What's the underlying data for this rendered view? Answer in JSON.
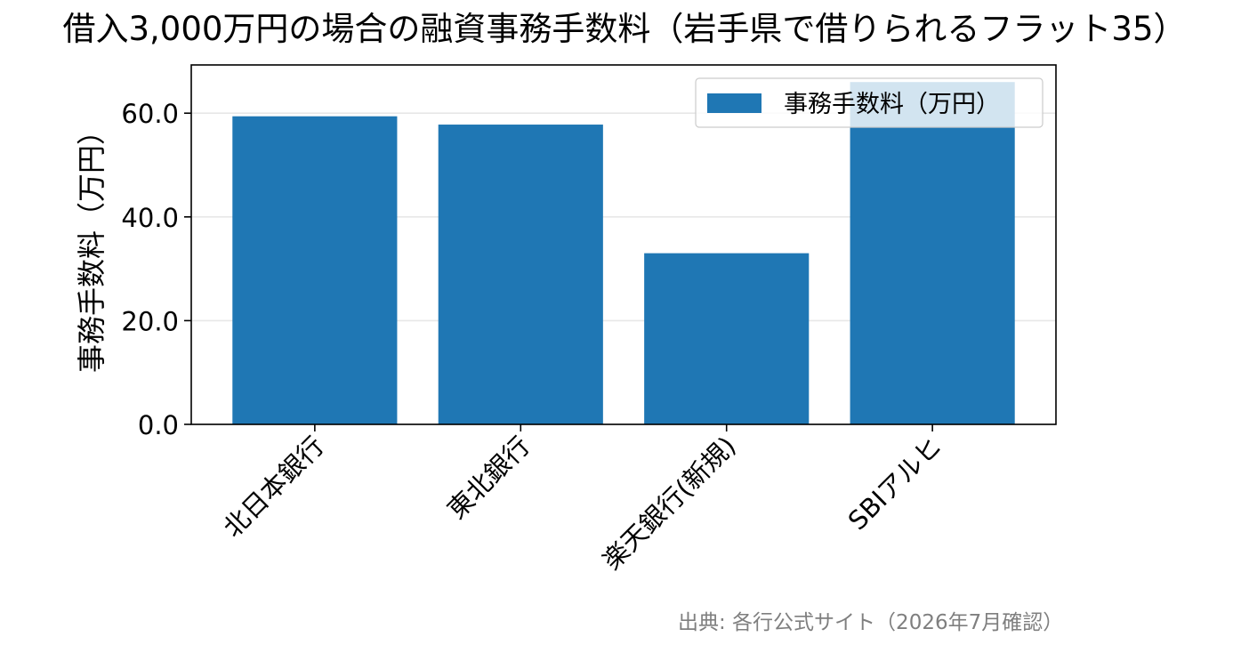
{
  "chart_data": {
    "type": "bar",
    "title": "借入3,000万円の場合の融資事務手数料（岩手県で借りられるフラット35）",
    "xlabel": "",
    "ylabel": "事務手数料（万円）",
    "categories": [
      "北日本銀行",
      "東北銀行",
      "楽天銀行(新規)",
      "SBIアルヒ"
    ],
    "series": [
      {
        "name": "事務手数料（万円）",
        "values": [
          59.4,
          57.8,
          33.0,
          66.0
        ]
      }
    ],
    "ylim": [
      0,
      69.3
    ],
    "yticks": [
      0,
      20,
      40,
      60
    ],
    "ytick_labels": [
      "0.0",
      "20.0",
      "40.0",
      "60.0"
    ],
    "grid": "y",
    "legend": "upper-right",
    "colors": {
      "bar": "#1f77b4"
    },
    "source": "出典: 各行公式サイト（2026年7月確認）"
  }
}
